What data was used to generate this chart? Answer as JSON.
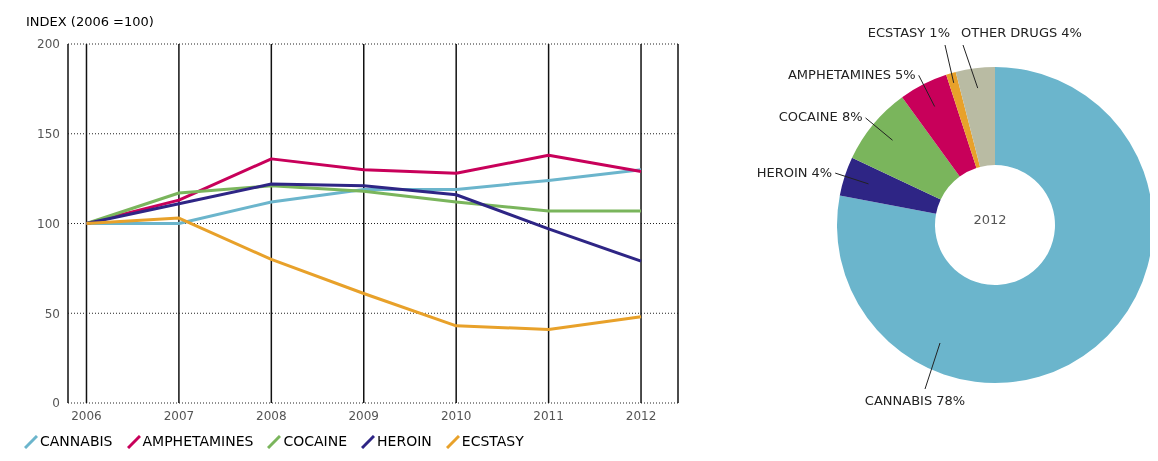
{
  "chart_data": [
    {
      "type": "line",
      "ylabel": "INDEX (2006 =100)",
      "categories": [
        "2006",
        "2007",
        "2008",
        "2009",
        "2010",
        "2011",
        "2012"
      ],
      "ylim": [
        0,
        200
      ],
      "yticks": [
        0,
        50,
        100,
        150,
        200
      ],
      "grid": true,
      "legend": "bottom",
      "marker": "none",
      "line_style": "solid",
      "series": [
        {
          "name": "CANNABIS",
          "color": "#6bb5cc",
          "values": [
            100,
            100,
            112,
            119,
            119,
            124,
            130
          ]
        },
        {
          "name": "AMPHETAMINES",
          "color": "#c8005a",
          "values": [
            100,
            113,
            136,
            130,
            128,
            138,
            129
          ]
        },
        {
          "name": "COCAINE",
          "color": "#7ab55c",
          "values": [
            100,
            117,
            121,
            118,
            112,
            107,
            107
          ]
        },
        {
          "name": "HEROIN",
          "color": "#2e2585",
          "values": [
            100,
            111,
            122,
            121,
            116,
            97,
            79
          ]
        },
        {
          "name": "ECSTASY",
          "color": "#e8a12a",
          "values": [
            100,
            103,
            80,
            61,
            43,
            41,
            48
          ]
        }
      ]
    },
    {
      "type": "donut",
      "title": "2012",
      "categories": [
        "CANNABIS",
        "HEROIN",
        "COCAINE",
        "AMPHETAMINES",
        "ECSTASY",
        "OTHER DRUGS"
      ],
      "values": [
        78,
        4,
        8,
        5,
        1,
        4
      ],
      "value_labels": [
        "78%",
        "4%",
        "8%",
        "5%",
        "1%",
        "4%"
      ],
      "colors": [
        "#6bb5cc",
        "#2e2585",
        "#7ab55c",
        "#c8005a",
        "#e8a12a",
        "#b9bba3"
      ]
    }
  ]
}
